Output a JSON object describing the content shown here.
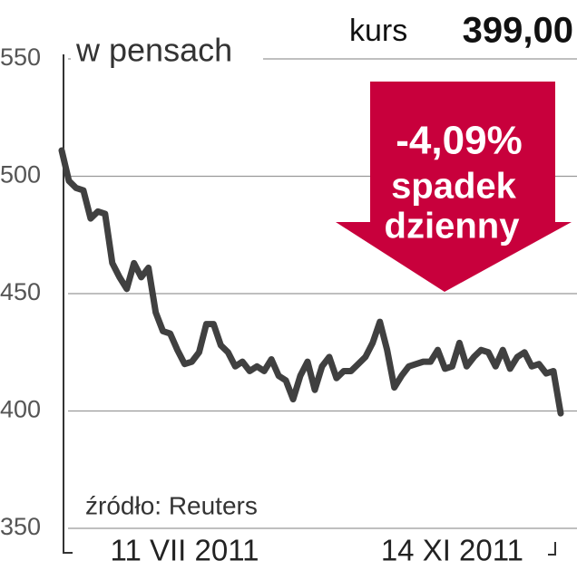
{
  "chart_data": {
    "type": "line",
    "header_label": "kurs",
    "header_value": "399,00",
    "ylabel": "w pensach",
    "annotation": [
      "-4,09%",
      "spadek",
      "dzienny"
    ],
    "source": "źródło: Reuters",
    "categories": [
      null,
      null,
      null,
      null,
      null,
      null,
      null,
      null,
      null,
      null,
      null,
      null,
      null,
      null,
      null,
      null,
      null,
      "11 VII 2011",
      null,
      null,
      null,
      null,
      null,
      null,
      null,
      null,
      null,
      null,
      null,
      null,
      null,
      null,
      null,
      null,
      null,
      null,
      null,
      null,
      null,
      null,
      null,
      null,
      null,
      null,
      null,
      null,
      null,
      null,
      null,
      null,
      null,
      null,
      null,
      null,
      "14 XI 2011",
      null,
      null,
      null,
      null,
      null,
      null,
      null,
      null,
      null,
      null,
      null,
      null,
      null,
      null,
      null
    ],
    "series": [
      {
        "name": "kurs",
        "color": "#404040",
        "values": [
          511,
          498,
          495,
          494,
          482,
          485,
          484,
          463,
          457,
          452,
          463,
          457,
          461,
          442,
          434,
          433,
          426,
          420,
          421,
          425,
          437,
          437,
          428,
          425,
          419,
          421,
          417,
          419,
          417,
          422,
          415,
          413,
          405,
          415,
          421,
          409,
          419,
          423,
          414,
          417,
          417,
          420,
          423,
          429,
          438,
          426,
          410,
          415,
          419,
          420,
          421,
          421,
          426,
          418,
          419,
          429,
          419,
          423,
          426,
          425,
          419,
          426,
          418,
          423,
          425,
          419,
          420,
          416,
          417,
          399
        ]
      }
    ],
    "ylim": [
      350,
      550
    ],
    "yticks": [
      350,
      400,
      450,
      500,
      550
    ],
    "grid": true,
    "annotation_color": "#c8003c"
  }
}
